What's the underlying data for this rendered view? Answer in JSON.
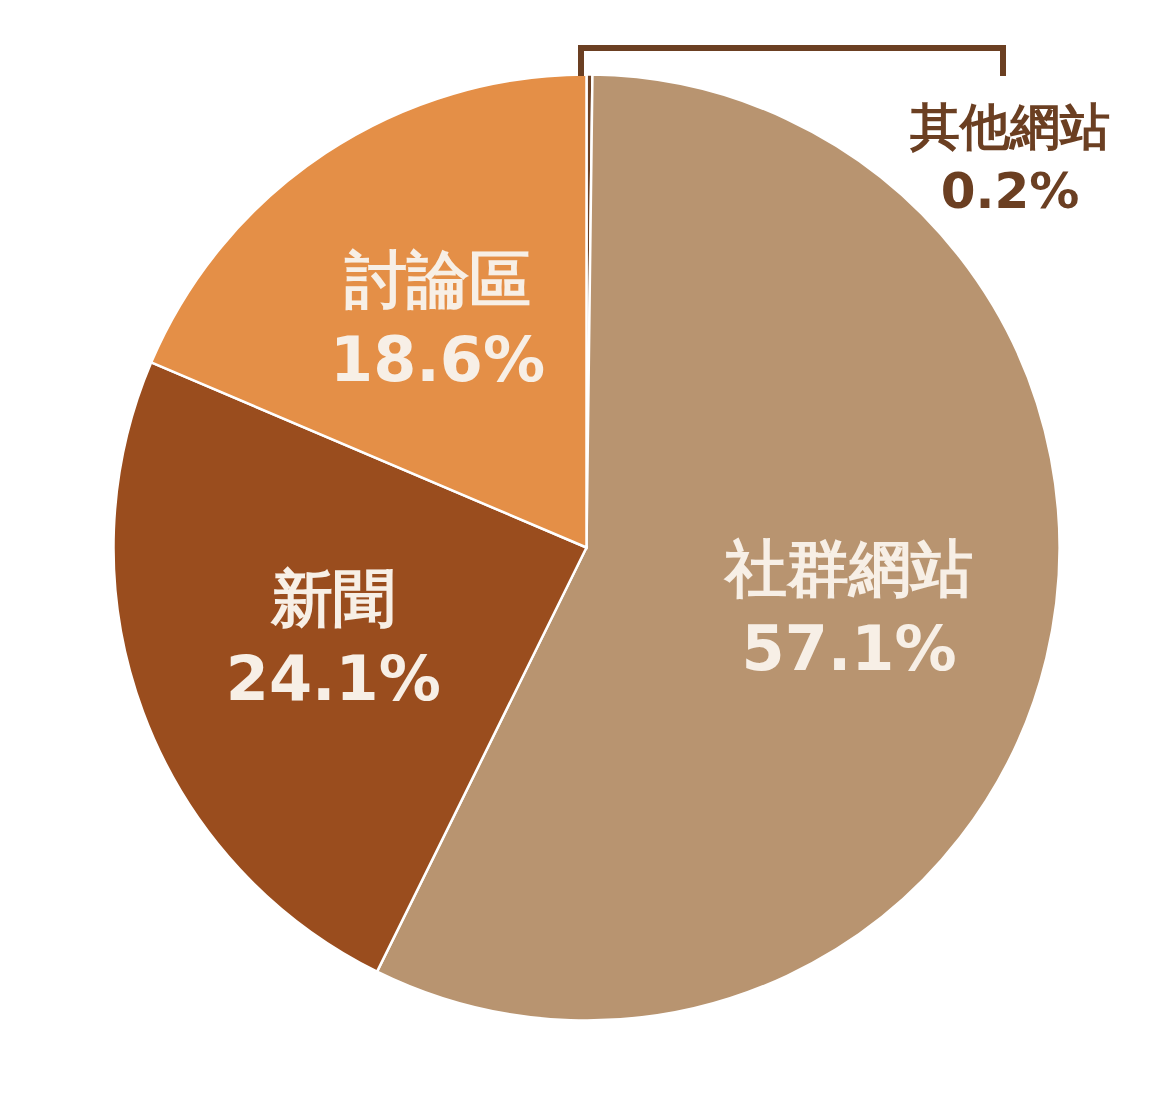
{
  "chart_data": {
    "type": "pie",
    "categories": [
      "其他網站",
      "社群網站",
      "新聞",
      "討論區"
    ],
    "values": [
      0.2,
      57.1,
      24.1,
      18.6
    ],
    "colors": [
      "#6b3f22",
      "#b89470",
      "#9a4d1e",
      "#e48f47"
    ],
    "value_labels": [
      "0.2%",
      "57.1%",
      "24.1%",
      "18.6%"
    ]
  }
}
